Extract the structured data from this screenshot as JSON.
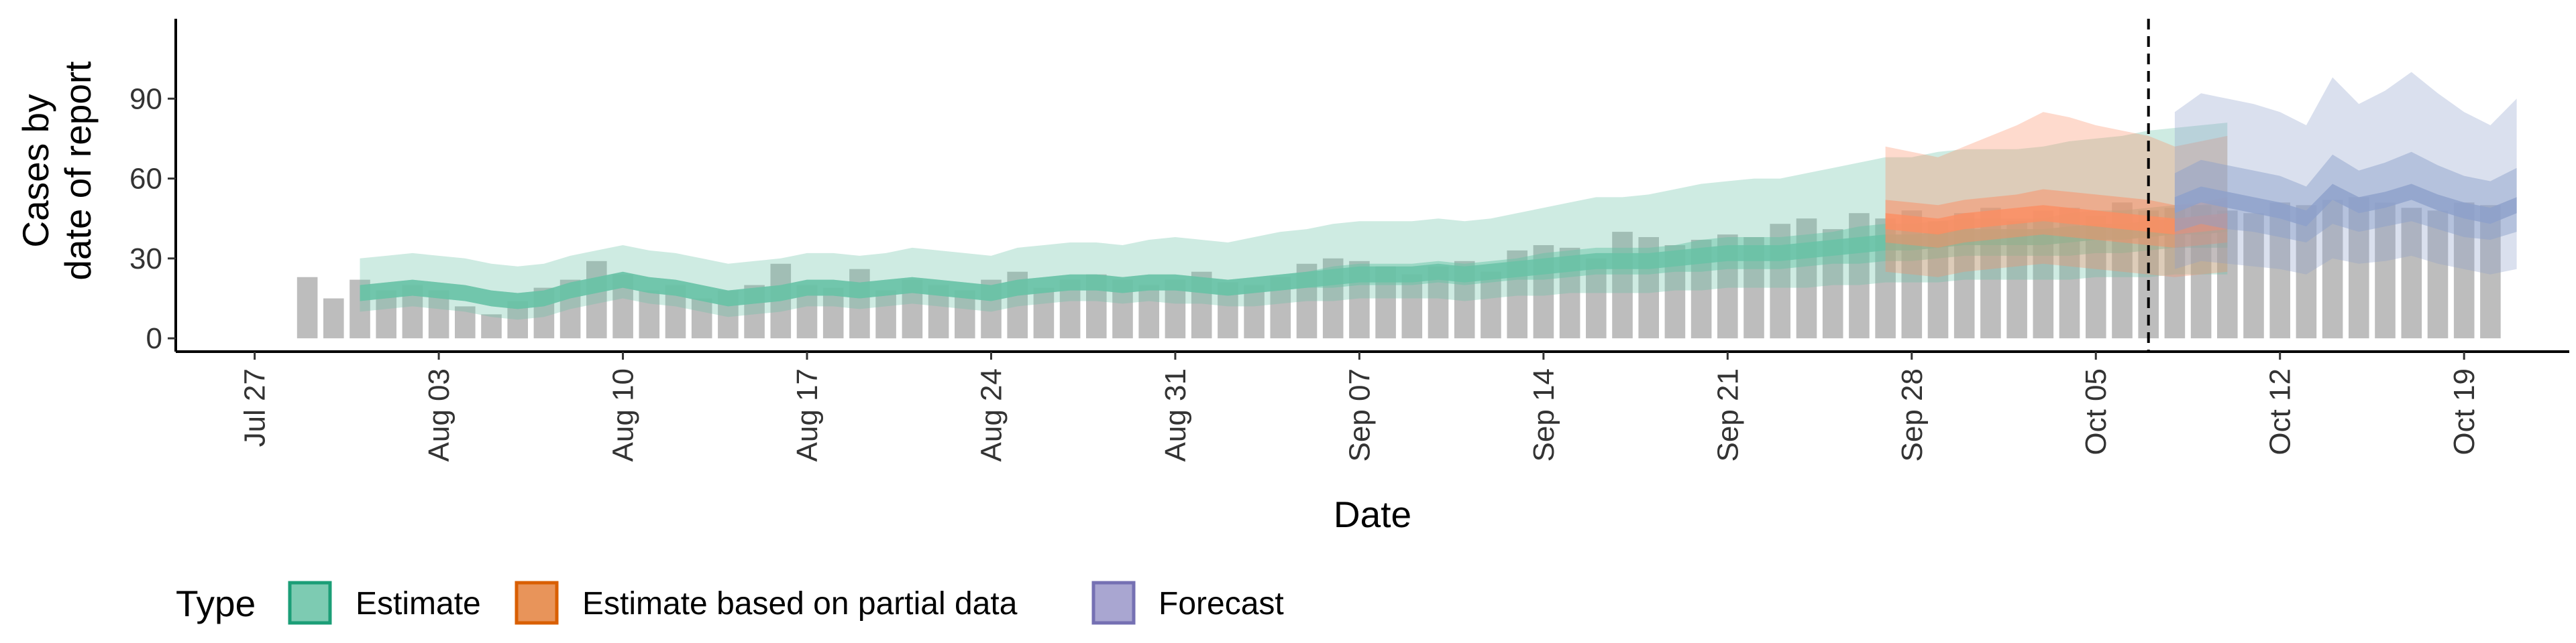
{
  "chart_data": {
    "type": "bar",
    "x_type": "date",
    "year": 2020,
    "xlabel": "Date",
    "ylabel_lines": [
      "Cases by",
      "date of report"
    ],
    "ylim": [
      -5,
      120
    ],
    "y_ticks": [
      0,
      30,
      60,
      90
    ],
    "x_tick_labels": [
      "Jul 27",
      "Aug 03",
      "Aug 10",
      "Aug 17",
      "Aug 24",
      "Aug 31",
      "Sep 07",
      "Sep 14",
      "Sep 21",
      "Sep 28",
      "Oct 05",
      "Oct 12",
      "Oct 19"
    ],
    "x_ticks": [
      "2020-07-27",
      "2020-08-03",
      "2020-08-10",
      "2020-08-17",
      "2020-08-24",
      "2020-08-31",
      "2020-09-07",
      "2020-09-14",
      "2020-09-21",
      "2020-09-28",
      "2020-10-05",
      "2020-10-12",
      "2020-10-19"
    ],
    "x_range": [
      "2020-07-24",
      "2020-10-23"
    ],
    "forecast_line_date": "2020-10-07",
    "colors": {
      "bars": "#bdbdbd",
      "estimate": "#1b9e77",
      "partial": "#d95f02",
      "forecast": "#7570b3",
      "estimate_fill": "#66c2a5",
      "partial_fill": "#fc8d62",
      "forecast_fill": "#8da0cb"
    },
    "reported_cases": {
      "start": "2020-07-29",
      "values": [
        23,
        15,
        22,
        18,
        20,
        18,
        12,
        9,
        14,
        19,
        22,
        29,
        24,
        18,
        20,
        15,
        18,
        20,
        28,
        20,
        19,
        26,
        18,
        22,
        20,
        18,
        22,
        25,
        19,
        22,
        24,
        22,
        20,
        22,
        25,
        21,
        20,
        23,
        28,
        30,
        29,
        27,
        24,
        27,
        29,
        25,
        33,
        35,
        34,
        30,
        40,
        38,
        35,
        37,
        39,
        38,
        43,
        45,
        41,
        47,
        45,
        48,
        44,
        47,
        49,
        44,
        48,
        49,
        46,
        51,
        48,
        49,
        50,
        48,
        47,
        51,
        50,
        52,
        53,
        51,
        49,
        48,
        51,
        50
      ]
    },
    "series": [
      {
        "name": "Estimate",
        "start": "2020-07-31",
        "median": [
          17,
          18,
          19,
          18,
          17,
          15,
          14,
          15,
          18,
          20,
          22,
          20,
          19,
          17,
          15,
          16,
          17,
          19,
          19,
          18,
          19,
          20,
          19,
          18,
          17,
          19,
          20,
          21,
          21,
          20,
          21,
          21,
          20,
          19,
          20,
          21,
          22,
          23,
          24,
          24,
          24,
          25,
          24,
          25,
          26,
          27,
          28,
          29,
          29,
          29,
          30,
          31,
          32,
          32,
          32,
          33,
          34,
          35,
          36,
          36,
          37,
          38,
          38,
          38,
          38,
          39,
          40,
          40,
          41,
          42,
          42,
          43
        ],
        "inner_lower": [
          14,
          15,
          16,
          15,
          14,
          12,
          11,
          12,
          15,
          17,
          19,
          17,
          16,
          14,
          12,
          13,
          14,
          16,
          16,
          15,
          16,
          17,
          16,
          15,
          14,
          16,
          17,
          18,
          18,
          17,
          18,
          18,
          17,
          16,
          17,
          18,
          19,
          19,
          20,
          20,
          20,
          21,
          20,
          21,
          22,
          22,
          23,
          24,
          24,
          24,
          25,
          25,
          26,
          26,
          26,
          27,
          28,
          28,
          29,
          29,
          30,
          31,
          31,
          31,
          31,
          31,
          32,
          32,
          33,
          34,
          34,
          34
        ],
        "inner_upper": [
          20,
          21,
          22,
          21,
          20,
          18,
          17,
          18,
          21,
          23,
          25,
          23,
          22,
          20,
          18,
          19,
          20,
          22,
          22,
          21,
          22,
          23,
          22,
          21,
          20,
          22,
          23,
          24,
          24,
          23,
          24,
          24,
          23,
          22,
          23,
          24,
          25,
          27,
          28,
          28,
          28,
          29,
          28,
          29,
          30,
          32,
          33,
          34,
          34,
          34,
          35,
          37,
          38,
          38,
          38,
          39,
          40,
          42,
          43,
          43,
          44,
          45,
          45,
          45,
          45,
          47,
          48,
          48,
          49,
          50,
          50,
          52
        ],
        "outer_lower": [
          10,
          11,
          12,
          11,
          10,
          8,
          7,
          8,
          11,
          13,
          15,
          13,
          12,
          10,
          8,
          9,
          10,
          12,
          12,
          11,
          12,
          13,
          12,
          11,
          10,
          12,
          13,
          14,
          14,
          13,
          14,
          13,
          13,
          12,
          12,
          13,
          14,
          14,
          15,
          15,
          15,
          15,
          14,
          15,
          16,
          16,
          17,
          17,
          17,
          17,
          18,
          18,
          19,
          19,
          19,
          19,
          20,
          20,
          21,
          21,
          21,
          22,
          22,
          22,
          22,
          22,
          23,
          23,
          23,
          24,
          24,
          24
        ],
        "outer_upper": [
          30,
          31,
          32,
          31,
          30,
          28,
          27,
          28,
          31,
          33,
          35,
          33,
          32,
          30,
          28,
          29,
          30,
          32,
          32,
          31,
          32,
          34,
          33,
          32,
          31,
          34,
          35,
          36,
          36,
          35,
          37,
          38,
          37,
          36,
          38,
          40,
          41,
          43,
          44,
          44,
          44,
          45,
          44,
          45,
          47,
          49,
          51,
          53,
          53,
          54,
          56,
          58,
          59,
          60,
          60,
          62,
          64,
          66,
          68,
          68,
          70,
          71,
          71,
          71,
          72,
          74,
          75,
          76,
          78,
          79,
          80,
          81
        ]
      },
      {
        "name": "Estimate based on partial data",
        "start": "2020-09-27",
        "median": [
          44,
          43,
          42,
          44,
          45,
          46,
          47,
          46,
          45,
          44,
          43,
          42,
          43,
          44
        ],
        "inner_lower": [
          36,
          35,
          34,
          36,
          37,
          38,
          39,
          38,
          37,
          36,
          35,
          34,
          35,
          36
        ],
        "inner_upper": [
          52,
          51,
          50,
          52,
          53,
          54,
          56,
          55,
          54,
          53,
          52,
          50,
          51,
          53
        ],
        "outer_lower": [
          25,
          24,
          23,
          25,
          26,
          27,
          28,
          27,
          26,
          25,
          24,
          23,
          24,
          25
        ],
        "outer_upper": [
          72,
          70,
          68,
          72,
          76,
          80,
          85,
          83,
          80,
          78,
          76,
          72,
          74,
          76
        ]
      },
      {
        "name": "Forecast",
        "start": "2020-10-08",
        "median": [
          50,
          54,
          52,
          50,
          48,
          45,
          55,
          50,
          52,
          55,
          51,
          48,
          46,
          50
        ],
        "inner_lower": [
          40,
          43,
          41,
          40,
          38,
          36,
          43,
          40,
          42,
          44,
          41,
          38,
          37,
          40
        ],
        "inner_upper": [
          62,
          67,
          65,
          63,
          61,
          57,
          69,
          63,
          66,
          70,
          65,
          61,
          59,
          64
        ],
        "outer_lower": [
          26,
          29,
          28,
          27,
          26,
          24,
          30,
          28,
          29,
          31,
          28,
          26,
          24,
          26
        ],
        "outer_upper": [
          85,
          92,
          90,
          88,
          85,
          80,
          98,
          88,
          93,
          100,
          92,
          85,
          80,
          90
        ]
      }
    ],
    "legend": {
      "title": "Type",
      "items": [
        "Estimate",
        "Estimate based on partial data",
        "Forecast"
      ]
    }
  }
}
